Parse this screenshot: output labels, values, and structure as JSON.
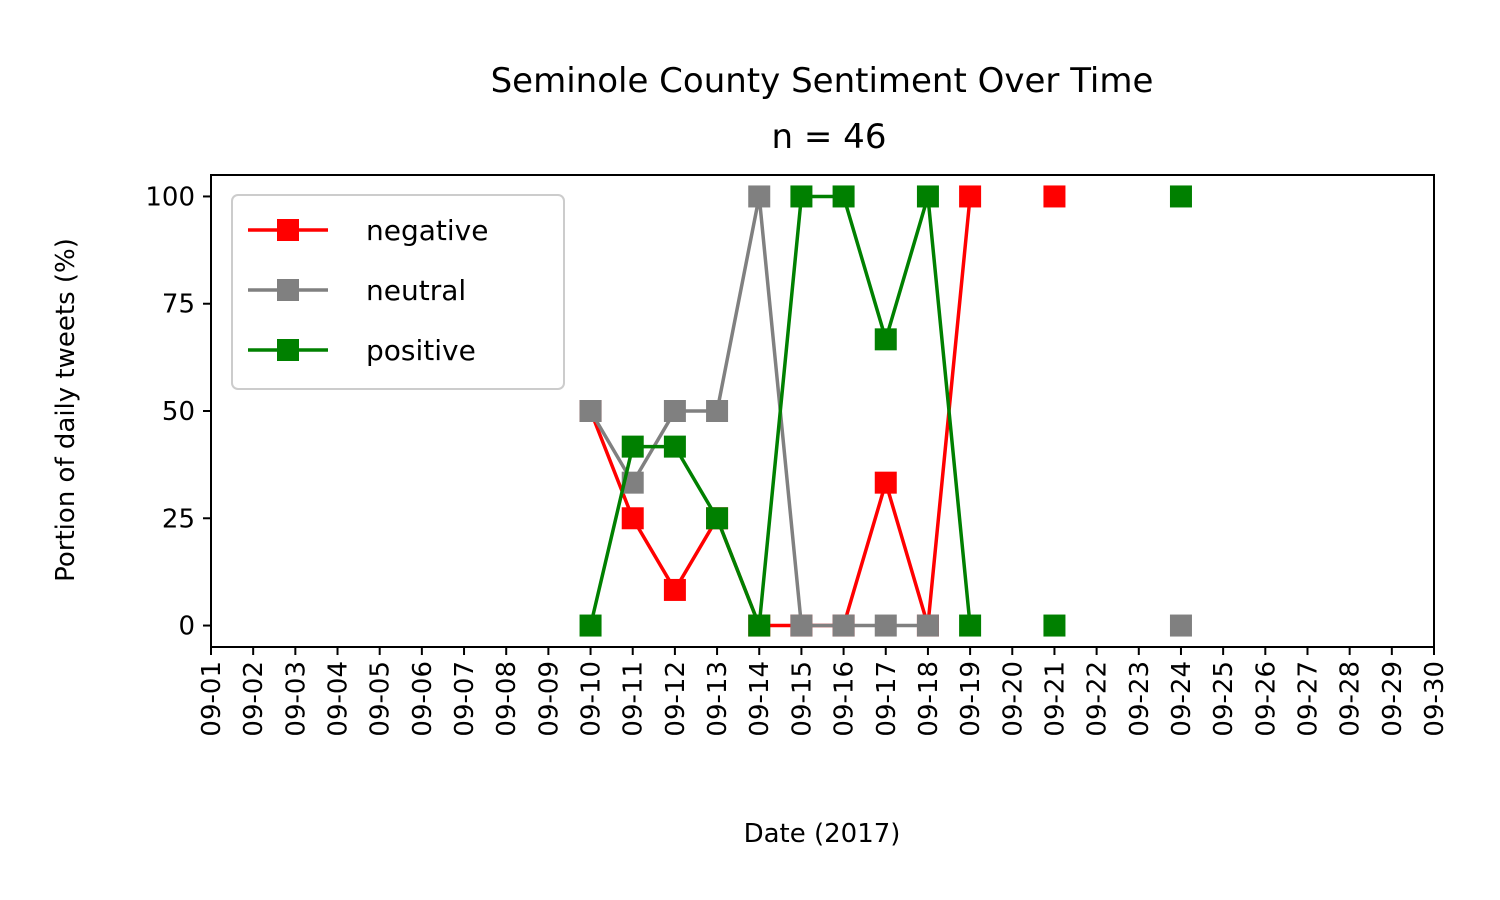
{
  "chart_data": {
    "type": "line",
    "title": "Seminole County Sentiment Over Time",
    "subtitle": "n = 46",
    "xlabel": "Date (2017)",
    "ylabel": "Portion of daily tweets (%)",
    "ylim": [
      -5,
      105
    ],
    "yticks": [
      0,
      25,
      50,
      75,
      100
    ],
    "x_tick_labels": [
      "09-01",
      "09-02",
      "09-03",
      "09-04",
      "09-05",
      "09-06",
      "09-07",
      "09-08",
      "09-09",
      "09-10",
      "09-11",
      "09-12",
      "09-13",
      "09-14",
      "09-15",
      "09-16",
      "09-17",
      "09-18",
      "09-19",
      "09-20",
      "09-21",
      "09-22",
      "09-23",
      "09-24",
      "09-25",
      "09-26",
      "09-27",
      "09-28",
      "09-29",
      "09-30"
    ],
    "legend_position": "upper-left",
    "grid": false,
    "series": [
      {
        "name": "negative",
        "color": "#ff0000",
        "marker": "square",
        "points": [
          {
            "date": "09-10",
            "value": 50
          },
          {
            "date": "09-11",
            "value": 25
          },
          {
            "date": "09-12",
            "value": 8.3
          },
          {
            "date": "09-13",
            "value": 25
          },
          {
            "date": "09-14",
            "value": 0
          },
          {
            "date": "09-15",
            "value": 0
          },
          {
            "date": "09-16",
            "value": 0
          },
          {
            "date": "09-17",
            "value": 33.3
          },
          {
            "date": "09-18",
            "value": 0
          },
          {
            "date": "09-19",
            "value": 100
          },
          {
            "date": "09-21",
            "value": 100
          }
        ]
      },
      {
        "name": "neutral",
        "color": "#808080",
        "marker": "square",
        "points": [
          {
            "date": "09-10",
            "value": 50
          },
          {
            "date": "09-11",
            "value": 33.3
          },
          {
            "date": "09-12",
            "value": 50
          },
          {
            "date": "09-13",
            "value": 50
          },
          {
            "date": "09-14",
            "value": 100
          },
          {
            "date": "09-15",
            "value": 0
          },
          {
            "date": "09-16",
            "value": 0
          },
          {
            "date": "09-17",
            "value": 0
          },
          {
            "date": "09-18",
            "value": 0
          },
          {
            "date": "09-24",
            "value": 0
          }
        ]
      },
      {
        "name": "positive",
        "color": "#008000",
        "marker": "square",
        "points": [
          {
            "date": "09-10",
            "value": 0
          },
          {
            "date": "09-11",
            "value": 41.7
          },
          {
            "date": "09-12",
            "value": 41.7
          },
          {
            "date": "09-13",
            "value": 25
          },
          {
            "date": "09-14",
            "value": 0
          },
          {
            "date": "09-15",
            "value": 100
          },
          {
            "date": "09-16",
            "value": 100
          },
          {
            "date": "09-17",
            "value": 66.7
          },
          {
            "date": "09-18",
            "value": 100
          },
          {
            "date": "09-19",
            "value": 0
          },
          {
            "date": "09-21",
            "value": 0
          },
          {
            "date": "09-24",
            "value": 100
          }
        ]
      }
    ]
  }
}
